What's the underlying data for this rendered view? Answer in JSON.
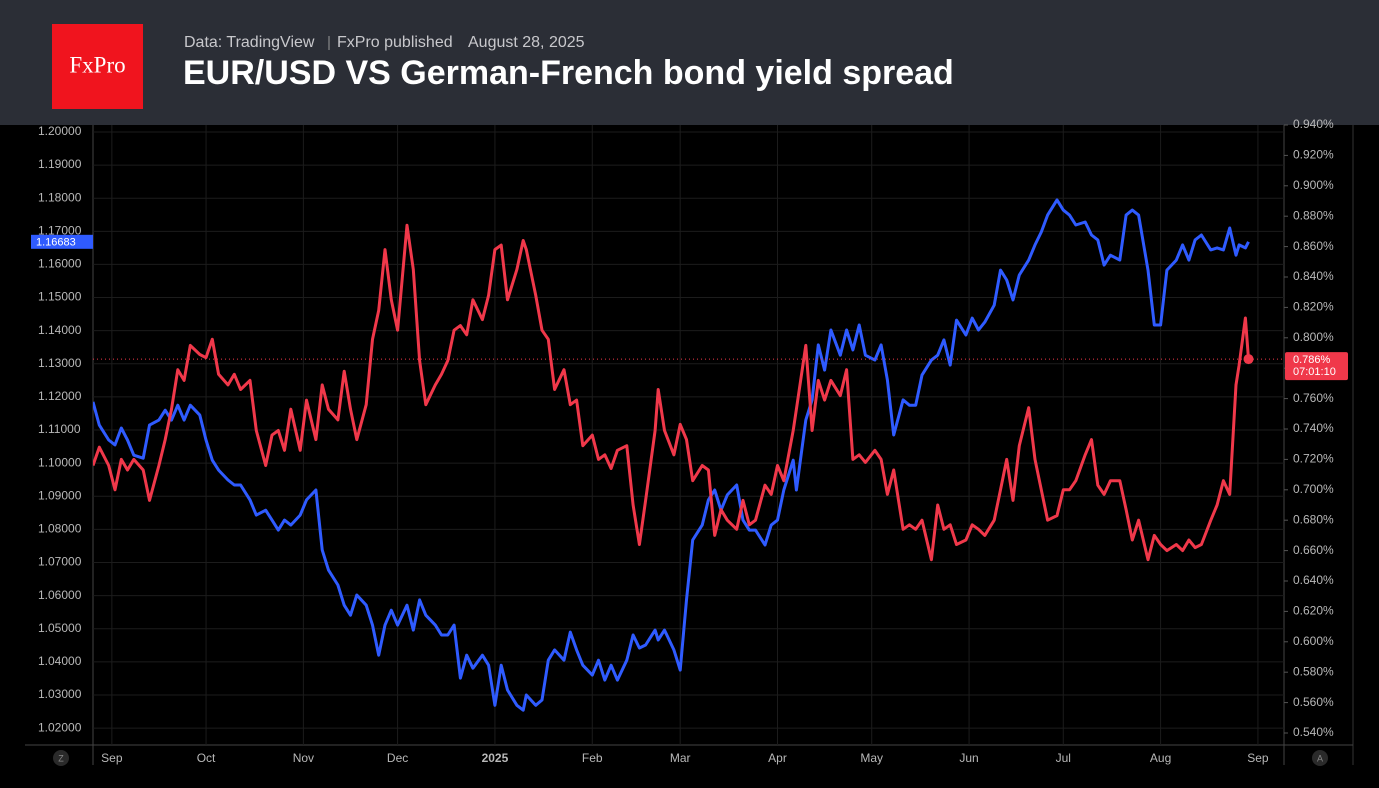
{
  "header": {
    "logo": "FxPro",
    "source": "Data: TradingView",
    "publisher": "FxPro published",
    "date": "August 28, 2025"
  },
  "chart_data": {
    "type": "line",
    "title": "EUR/USD VS German-French bond yield spread",
    "x": [
      -6,
      -4,
      -1,
      1,
      3,
      5,
      7,
      10,
      12,
      15,
      17,
      19,
      21,
      23,
      25,
      28,
      30,
      32,
      34,
      37,
      39,
      41,
      44,
      46,
      49,
      51,
      53,
      55,
      57,
      60,
      62,
      65,
      67,
      69,
      72,
      74,
      76,
      78,
      81,
      83,
      85,
      87,
      89,
      91,
      94,
      96,
      98,
      100,
      103,
      105,
      107,
      109,
      111,
      113,
      115,
      118,
      120,
      122,
      124,
      126,
      129,
      131,
      132,
      135,
      137,
      139,
      141,
      144,
      146,
      148,
      150,
      153,
      155,
      157,
      159,
      161,
      164,
      166,
      168,
      170,
      173,
      174,
      176,
      179,
      181,
      183,
      185,
      188,
      190,
      192,
      194,
      196,
      199,
      201,
      203,
      205,
      208,
      210,
      212,
      214,
      217,
      218,
      221,
      223,
      225,
      227,
      229,
      232,
      234,
      236,
      238,
      240,
      243,
      245,
      247,
      249,
      252,
      254,
      256,
      258,
      261,
      263,
      265,
      267,
      269,
      272,
      274,
      276,
      278,
      281,
      283,
      285,
      287,
      289,
      292,
      294,
      296,
      298,
      301,
      303,
      305,
      307,
      310,
      312,
      314,
      316,
      318,
      321,
      323,
      325,
      327,
      330,
      332,
      334,
      336,
      339,
      341,
      343,
      345,
      347,
      350,
      352,
      354,
      356,
      358,
      359,
      361,
      362
    ],
    "xlim": [
      -6,
      373.3
    ],
    "xticks": [
      {
        "value": 0,
        "label": "Sep"
      },
      {
        "value": 30,
        "label": "Oct"
      },
      {
        "value": 61,
        "label": "Nov"
      },
      {
        "value": 91,
        "label": "Dec"
      },
      {
        "value": 122,
        "label": "2025"
      },
      {
        "value": 153,
        "label": "Feb"
      },
      {
        "value": 181,
        "label": "Mar"
      },
      {
        "value": 212,
        "label": "Apr"
      },
      {
        "value": 242,
        "label": "May"
      },
      {
        "value": 273,
        "label": "Jun"
      },
      {
        "value": 303,
        "label": "Jul"
      },
      {
        "value": 334,
        "label": "Aug"
      },
      {
        "value": 365,
        "label": "Sep"
      }
    ],
    "ylim": [
      1.0149,
      1.2021
    ],
    "yticks": [
      {
        "value": 1.02,
        "label": "1.02000"
      },
      {
        "value": 1.03,
        "label": "1.03000"
      },
      {
        "value": 1.04,
        "label": "1.04000"
      },
      {
        "value": 1.05,
        "label": "1.05000"
      },
      {
        "value": 1.06,
        "label": "1.06000"
      },
      {
        "value": 1.07,
        "label": "1.07000"
      },
      {
        "value": 1.08,
        "label": "1.08000"
      },
      {
        "value": 1.09,
        "label": "1.09000"
      },
      {
        "value": 1.1,
        "label": "1.10000"
      },
      {
        "value": 1.11,
        "label": "1.11000"
      },
      {
        "value": 1.12,
        "label": "1.12000"
      },
      {
        "value": 1.13,
        "label": "1.13000"
      },
      {
        "value": 1.14,
        "label": "1.14000"
      },
      {
        "value": 1.15,
        "label": "1.15000"
      },
      {
        "value": 1.16,
        "label": "1.16000"
      },
      {
        "value": 1.17,
        "label": "1.17000"
      },
      {
        "value": 1.18,
        "label": "1.18000"
      },
      {
        "value": 1.19,
        "label": "1.19000"
      },
      {
        "value": 1.2,
        "label": "1.20000"
      }
    ],
    "y2lim": [
      0.5321,
      0.94
    ],
    "y2ticks": [
      {
        "value": 0.54,
        "label": "0.540%"
      },
      {
        "value": 0.56,
        "label": "0.560%"
      },
      {
        "value": 0.58,
        "label": "0.580%"
      },
      {
        "value": 0.6,
        "label": "0.600%"
      },
      {
        "value": 0.62,
        "label": "0.620%"
      },
      {
        "value": 0.64,
        "label": "0.640%"
      },
      {
        "value": 0.66,
        "label": "0.660%"
      },
      {
        "value": 0.68,
        "label": "0.680%"
      },
      {
        "value": 0.7,
        "label": "0.700%"
      },
      {
        "value": 0.72,
        "label": "0.720%"
      },
      {
        "value": 0.74,
        "label": "0.740%"
      },
      {
        "value": 0.76,
        "label": "0.760%"
      },
      {
        "value": 0.78,
        "label": "0.780%"
      },
      {
        "value": 0.8,
        "label": "0.800%"
      },
      {
        "value": 0.82,
        "label": "0.820%"
      },
      {
        "value": 0.84,
        "label": "0.840%"
      },
      {
        "value": 0.86,
        "label": "0.860%"
      },
      {
        "value": 0.88,
        "label": "0.880%"
      },
      {
        "value": 0.9,
        "label": "0.900%"
      },
      {
        "value": 0.92,
        "label": "0.920%"
      },
      {
        "value": 0.94,
        "label": "0.940%"
      }
    ],
    "grid": true,
    "scale_buttons": [
      "Z",
      "A"
    ],
    "countdown": "07:01:10",
    "series": [
      {
        "color": "#2f5bff",
        "values": [
          1.1185,
          1.1115,
          1.107,
          1.1055,
          1.1106,
          1.107,
          1.1024,
          1.1015,
          1.1115,
          1.113,
          1.116,
          1.113,
          1.1175,
          1.113,
          1.1175,
          1.1145,
          1.107,
          1.1009,
          1.0979,
          1.0949,
          1.0934,
          1.0934,
          1.0889,
          1.0843,
          1.0858,
          1.0828,
          1.0798,
          1.0828,
          1.0813,
          1.0843,
          1.0889,
          1.0919,
          1.0738,
          1.0677,
          1.0632,
          1.0571,
          1.0541,
          1.0602,
          1.0571,
          1.0511,
          1.042,
          1.0511,
          1.0556,
          1.0511,
          1.0571,
          1.0496,
          1.0587,
          1.0541,
          1.0511,
          1.0481,
          1.0481,
          1.0511,
          1.0351,
          1.042,
          1.0381,
          1.042,
          1.039,
          1.0269,
          1.039,
          1.0315,
          1.0269,
          1.0254,
          1.03,
          1.0269,
          1.0285,
          1.0405,
          1.0436,
          1.0405,
          1.049,
          1.0436,
          1.039,
          1.036,
          1.0405,
          1.0345,
          1.039,
          1.0345,
          1.0405,
          1.0481,
          1.0442,
          1.0451,
          1.0496,
          1.0466,
          1.0496,
          1.0436,
          1.0375,
          1.0587,
          1.0768,
          1.0813,
          1.0889,
          1.0919,
          1.0858,
          1.0904,
          1.0934,
          1.0828,
          1.0798,
          1.0798,
          1.0753,
          1.0813,
          1.0828,
          1.0919,
          1.1009,
          1.0919,
          1.113,
          1.1191,
          1.1357,
          1.1281,
          1.1402,
          1.1326,
          1.1402,
          1.1342,
          1.1417,
          1.1326,
          1.1311,
          1.1357,
          1.1251,
          1.1085,
          1.1191,
          1.1175,
          1.1175,
          1.1266,
          1.1311,
          1.1326,
          1.1372,
          1.1296,
          1.1432,
          1.1387,
          1.1438,
          1.1402,
          1.1426,
          1.1477,
          1.1583,
          1.1553,
          1.1493,
          1.1568,
          1.1613,
          1.1659,
          1.1698,
          1.1749,
          1.1795,
          1.1764,
          1.1749,
          1.1719,
          1.1728,
          1.1689,
          1.1674,
          1.1598,
          1.1628,
          1.1613,
          1.1749,
          1.1764,
          1.1749,
          1.1583,
          1.1417,
          1.1417,
          1.1583,
          1.1613,
          1.1659,
          1.1613,
          1.1674,
          1.1689,
          1.1644,
          1.165,
          1.1644,
          1.171,
          1.1628,
          1.1659,
          1.165,
          1.16683
        ]
      },
      {
        "color": "#f0384a",
        "axis": "y2",
        "last_value_label": "0.786%",
        "values": [
          0.716,
          0.728,
          0.716,
          0.7,
          0.72,
          0.713,
          0.72,
          0.713,
          0.693,
          0.716,
          0.733,
          0.753,
          0.779,
          0.772,
          0.795,
          0.789,
          0.787,
          0.799,
          0.776,
          0.769,
          0.776,
          0.766,
          0.772,
          0.739,
          0.716,
          0.736,
          0.739,
          0.726,
          0.753,
          0.726,
          0.759,
          0.733,
          0.769,
          0.753,
          0.746,
          0.778,
          0.753,
          0.733,
          0.756,
          0.799,
          0.818,
          0.858,
          0.825,
          0.805,
          0.874,
          0.845,
          0.785,
          0.756,
          0.769,
          0.776,
          0.785,
          0.805,
          0.808,
          0.802,
          0.825,
          0.812,
          0.828,
          0.858,
          0.861,
          0.825,
          0.845,
          0.864,
          0.858,
          0.828,
          0.805,
          0.799,
          0.766,
          0.779,
          0.756,
          0.759,
          0.729,
          0.736,
          0.72,
          0.723,
          0.714,
          0.726,
          0.729,
          0.69,
          0.664,
          0.693,
          0.739,
          0.766,
          0.739,
          0.723,
          0.743,
          0.733,
          0.706,
          0.716,
          0.713,
          0.67,
          0.687,
          0.68,
          0.674,
          0.693,
          0.677,
          0.68,
          0.703,
          0.697,
          0.716,
          0.706,
          0.739,
          0.753,
          0.795,
          0.739,
          0.772,
          0.759,
          0.772,
          0.762,
          0.779,
          0.72,
          0.723,
          0.718,
          0.726,
          0.72,
          0.697,
          0.713,
          0.674,
          0.677,
          0.674,
          0.68,
          0.654,
          0.69,
          0.674,
          0.677,
          0.664,
          0.667,
          0.677,
          0.674,
          0.67,
          0.68,
          0.7,
          0.72,
          0.693,
          0.729,
          0.754,
          0.72,
          0.7,
          0.68,
          0.683,
          0.7,
          0.7,
          0.706,
          0.723,
          0.733,
          0.703,
          0.697,
          0.706,
          0.706,
          0.687,
          0.667,
          0.68,
          0.654,
          0.67,
          0.664,
          0.66,
          0.664,
          0.66,
          0.667,
          0.662,
          0.664,
          0.68,
          0.69,
          0.706,
          0.697,
          0.769,
          0.782,
          0.813,
          0.786
        ]
      }
    ]
  }
}
